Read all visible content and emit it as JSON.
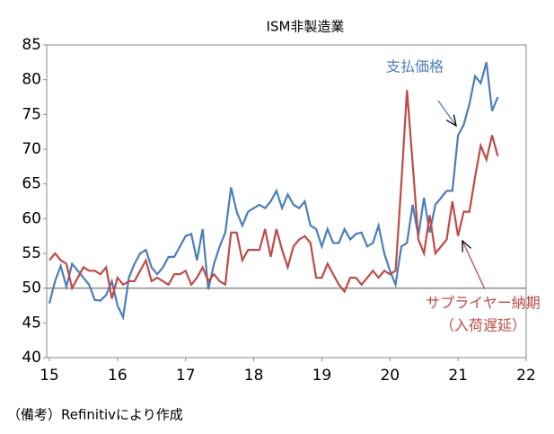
{
  "chart_data": {
    "type": "line",
    "title": "ISM非製造業",
    "x": [
      15,
      15.083,
      15.167,
      15.25,
      15.333,
      15.417,
      15.5,
      15.583,
      15.667,
      15.75,
      15.833,
      15.917,
      16,
      16.083,
      16.167,
      16.25,
      16.333,
      16.417,
      16.5,
      16.583,
      16.667,
      16.75,
      16.833,
      16.917,
      17,
      17.083,
      17.167,
      17.25,
      17.333,
      17.417,
      17.5,
      17.583,
      17.667,
      17.75,
      17.833,
      17.917,
      18,
      18.083,
      18.167,
      18.25,
      18.333,
      18.417,
      18.5,
      18.583,
      18.667,
      18.75,
      18.833,
      18.917,
      19,
      19.083,
      19.167,
      19.25,
      19.333,
      19.417,
      19.5,
      19.583,
      19.667,
      19.75,
      19.833,
      19.917,
      20,
      20.083,
      20.167,
      20.25,
      20.333,
      20.417,
      20.5,
      20.583,
      20.667,
      20.75,
      20.833,
      20.917,
      21,
      21.083,
      21.167,
      21.25,
      21.333,
      21.417,
      21.5,
      21.583
    ],
    "series": [
      {
        "name": "支払価格",
        "color": "#4a7ebb",
        "values": [
          47.8,
          51,
          53.2,
          50.2,
          53.5,
          52.5,
          51.5,
          50.5,
          48.3,
          48.2,
          49,
          51,
          47.5,
          45.8,
          51.5,
          53.5,
          55,
          55.5,
          53,
          52,
          53,
          54.5,
          54.5,
          56,
          57.5,
          57.8,
          54,
          58.5,
          49.8,
          53.5,
          56,
          58,
          64.5,
          61,
          59,
          61,
          61.5,
          62,
          61.5,
          62.5,
          64,
          61.5,
          63.5,
          62,
          61.5,
          62.5,
          59,
          58.5,
          56,
          58.5,
          56.5,
          56.5,
          58.5,
          57,
          57.8,
          58,
          56,
          56.5,
          59,
          55,
          52.5,
          50.5,
          56,
          56.5,
          62,
          57.5,
          63,
          58,
          62,
          63,
          64,
          64,
          72,
          73.5,
          76.5,
          80.5,
          79.5,
          82.5,
          75.5,
          77.5
        ]
      },
      {
        "name": "サプライヤー納期",
        "color": "#be4b48",
        "values": [
          54,
          55,
          54,
          53.5,
          50,
          51.5,
          53,
          52.5,
          52.5,
          52,
          53,
          48.5,
          51.5,
          50.5,
          51,
          51,
          52.5,
          54,
          51,
          51.5,
          51,
          50.5,
          52,
          52,
          52.5,
          50.5,
          51.5,
          53,
          51,
          52,
          51,
          50.5,
          58,
          58,
          54,
          55.5,
          55.5,
          55.5,
          58.5,
          54.5,
          58.5,
          55.5,
          53,
          56,
          57,
          57.5,
          56.5,
          51.5,
          51.5,
          53.5,
          52,
          50.5,
          49.5,
          51.5,
          51.5,
          50.5,
          51.5,
          52.5,
          51.5,
          52.5,
          52,
          52.5,
          65,
          78.5,
          68,
          57,
          55,
          60.5,
          55,
          56,
          57,
          62.5,
          57.5,
          61,
          61,
          66,
          70.5,
          68.5,
          72,
          69
        ]
      }
    ],
    "annotation_sub": "（入荷遅延）",
    "xlim": [
      15,
      22
    ],
    "xticks": [
      15,
      16,
      17,
      18,
      19,
      20,
      21,
      22
    ],
    "ylim": [
      40,
      85
    ],
    "yticks": [
      40,
      45,
      50,
      55,
      60,
      65,
      70,
      75,
      80,
      85
    ],
    "reference_line": 50,
    "note": "（備考）Refinitivにより作成"
  }
}
